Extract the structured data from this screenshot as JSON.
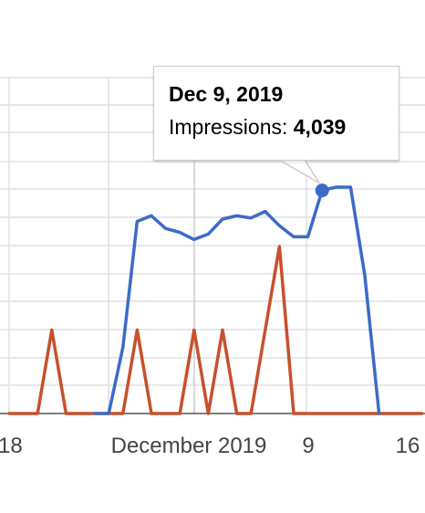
{
  "chart_data": {
    "type": "line",
    "x_range": [
      "2019-11-17",
      "2019-12-16"
    ],
    "x_tick_labels": [
      "18",
      "December 2019",
      "9",
      "16"
    ],
    "grid": true,
    "series": [
      {
        "name": "Impressions",
        "color": "#3b6bc8",
        "values": [
          [
            "2019-11-23",
            0
          ],
          [
            "2019-11-24",
            0
          ],
          [
            "2019-11-25",
            1200
          ],
          [
            "2019-11-26",
            3480
          ],
          [
            "2019-11-27",
            3580
          ],
          [
            "2019-11-28",
            3350
          ],
          [
            "2019-11-29",
            3280
          ],
          [
            "2019-11-30",
            3150
          ],
          [
            "2019-12-01",
            3250
          ],
          [
            "2019-12-02",
            3520
          ],
          [
            "2019-12-03",
            3580
          ],
          [
            "2019-12-04",
            3540
          ],
          [
            "2019-12-05",
            3660
          ],
          [
            "2019-12-06",
            3400
          ],
          [
            "2019-12-07",
            3200
          ],
          [
            "2019-12-08",
            3200
          ],
          [
            "2019-12-09",
            4039
          ],
          [
            "2019-12-10",
            4100
          ],
          [
            "2019-12-11",
            4100
          ],
          [
            "2019-12-12",
            2500
          ],
          [
            "2019-12-13",
            0
          ]
        ]
      },
      {
        "color": "#c8502c",
        "values": [
          [
            "2019-11-17",
            0
          ],
          [
            "2019-11-19",
            0
          ],
          [
            "2019-11-20",
            2.0
          ],
          [
            "2019-11-21",
            0
          ],
          [
            "2019-11-23",
            0
          ],
          [
            "2019-11-24",
            0
          ],
          [
            "2019-11-25",
            0
          ],
          [
            "2019-11-26",
            2.0
          ],
          [
            "2019-11-27",
            0
          ],
          [
            "2019-11-28",
            0
          ],
          [
            "2019-11-29",
            0
          ],
          [
            "2019-11-30",
            2.0
          ],
          [
            "2019-12-01",
            0
          ],
          [
            "2019-12-02",
            2.0
          ],
          [
            "2019-12-03",
            0
          ],
          [
            "2019-12-04",
            0
          ],
          [
            "2019-12-05",
            2.0
          ],
          [
            "2019-12-06",
            4.0
          ],
          [
            "2019-12-07",
            0
          ],
          [
            "2019-12-16",
            0
          ]
        ]
      }
    ]
  },
  "tooltip": {
    "date": "Dec 9, 2019",
    "label": "Impressions: ",
    "value": "4,039"
  }
}
